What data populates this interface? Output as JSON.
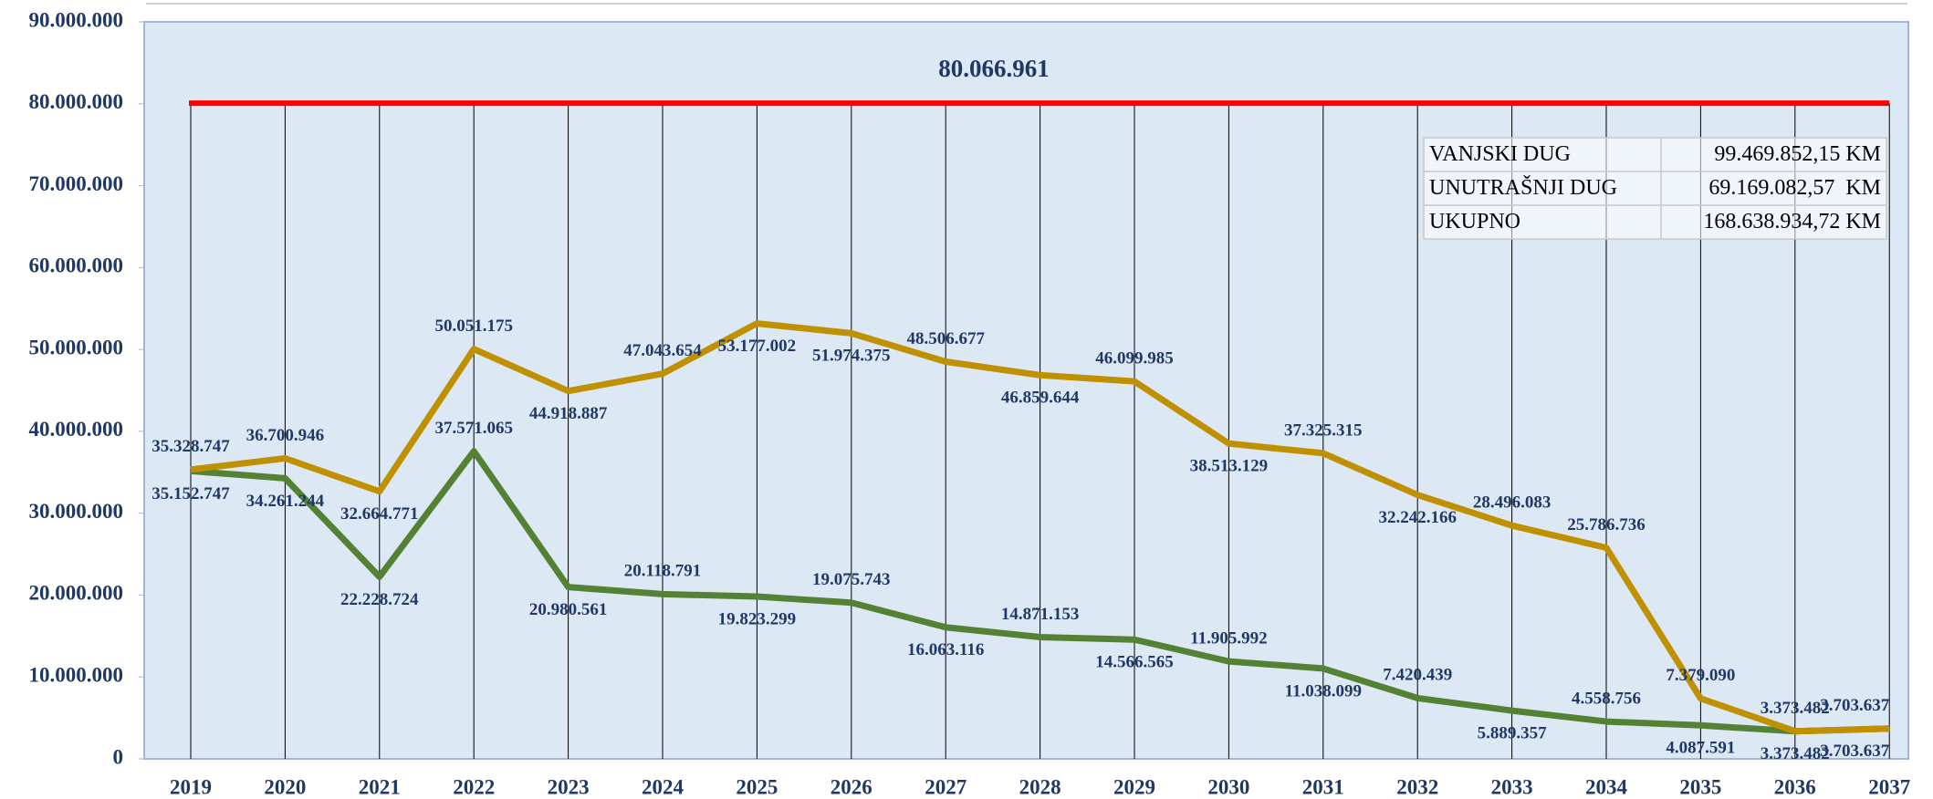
{
  "chart_data": {
    "type": "line",
    "categories": [
      "2019",
      "2020",
      "2021",
      "2022",
      "2023",
      "2024",
      "2025",
      "2026",
      "2027",
      "2028",
      "2029",
      "2030",
      "2031",
      "2032",
      "2033",
      "2034",
      "2035",
      "2036",
      "2037"
    ],
    "series": [
      {
        "color": "#bf9000",
        "values": [
          35328747,
          36700946,
          32664771,
          50051175,
          44918887,
          47043654,
          53177002,
          51974375,
          48506677,
          46859644,
          46099985,
          38513129,
          37325315,
          32242166,
          28496083,
          25786736,
          7379090,
          3373482,
          3703637
        ],
        "value_labels": [
          "35.328.747",
          "36.700.946",
          "32.664.771",
          "50.051.175",
          "44.918.887",
          "47.043.654",
          "53.177.002",
          "51.974.375",
          "48.506.677",
          "46.859.644",
          "46.099.985",
          "38.513.129",
          "37.325.315",
          "32.242.166",
          "28.496.083",
          "25.786.736",
          "7.379.090",
          "3.373.482",
          "3.703.637"
        ]
      },
      {
        "color": "#548235",
        "values": [
          35152747,
          34261244,
          22228724,
          37571065,
          20980561,
          20118791,
          19823299,
          19075743,
          16063116,
          14871153,
          14566565,
          11905992,
          11038099,
          7420439,
          5889357,
          4558756,
          4087591,
          3373482,
          3703637
        ],
        "value_labels": [
          "35.152.747",
          "34.261.244",
          "22.228.724",
          "37.571.065",
          "20.980.561",
          "20.118.791",
          "19.823.299",
          "19.075.743",
          "16.063.116",
          "14.871.153",
          "14.566.565",
          "11.905.992",
          "11.038.099",
          "7.420.439",
          "5.889.357",
          "4.558.756",
          "4.087.591",
          "3.373.482",
          "3.703.637"
        ]
      }
    ],
    "reference_line": {
      "value": 80066961,
      "label": "80.066.961",
      "color": "#ff0000"
    },
    "ylim": [
      0,
      90000000
    ],
    "yticks": [
      0,
      {
        "value": 10000000,
        "label": "10.000.000"
      },
      {
        "value": 20000000,
        "label": "20.000.000"
      },
      {
        "value": 30000000,
        "label": "30.000.000"
      },
      {
        "value": 40000000,
        "label": "40.000.000"
      },
      {
        "value": 50000000,
        "label": "50.000.000"
      },
      {
        "value": 60000000,
        "label": "60.000.000"
      },
      {
        "value": 70000000,
        "label": "70.000.000"
      },
      {
        "value": 80000000,
        "label": "80.000.000"
      },
      {
        "value": 90000000,
        "label": "90.000.000"
      }
    ],
    "table": {
      "rows": [
        [
          "VANJSKI DUG",
          "99.469.852,15 KM"
        ],
        [
          "UNUTRAŠNJI DUG",
          "69.169.082,57  KM"
        ],
        [
          "UKUPNO",
          "168.638.934,72 KM"
        ]
      ]
    }
  }
}
